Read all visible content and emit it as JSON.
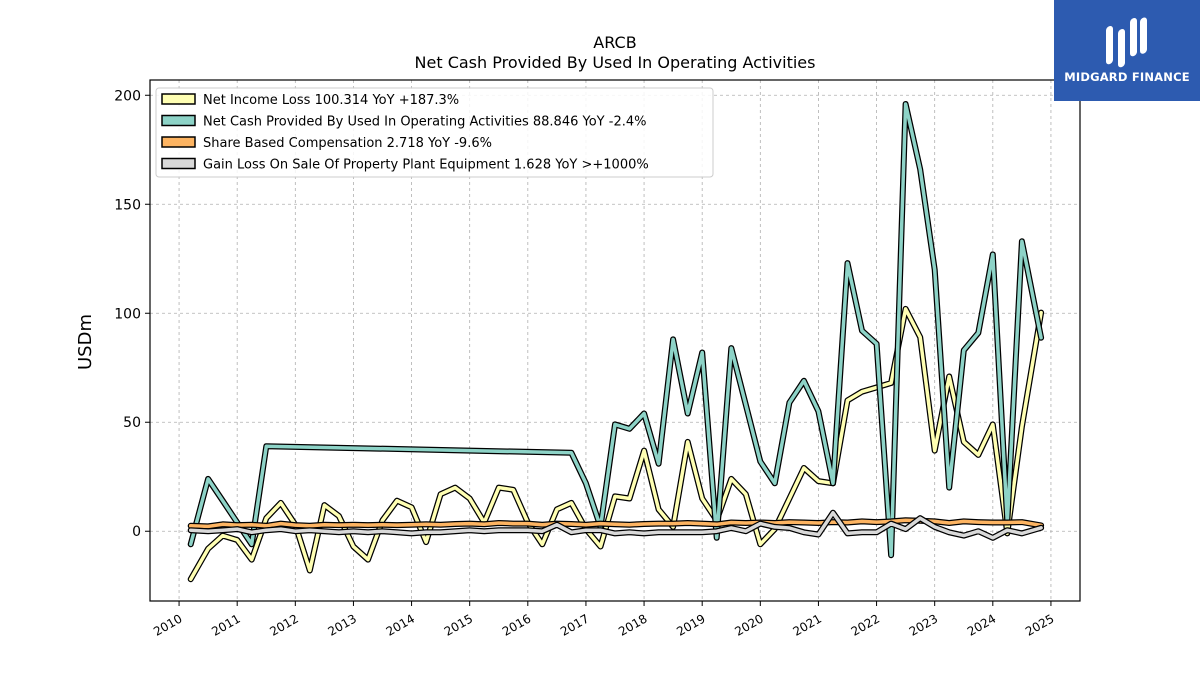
{
  "brand": {
    "name": "MIDGARD FINANCE",
    "color": "#2d5bb0"
  },
  "chart_data": {
    "type": "line",
    "title": "ARCB",
    "subtitle": "Net Cash Provided By Used In Operating Activities",
    "ylabel": "USDm",
    "xlabel": "",
    "xlim": [
      2009.5,
      2025.5
    ],
    "ylim": [
      -32,
      207
    ],
    "yticks": [
      0,
      50,
      100,
      150,
      200
    ],
    "xticks": [
      2010,
      2011,
      2012,
      2013,
      2014,
      2015,
      2016,
      2017,
      2018,
      2019,
      2020,
      2021,
      2022,
      2023,
      2024,
      2025
    ],
    "grid": true,
    "legend_position": "top-left",
    "series": [
      {
        "name": "Net Income Loss",
        "legend": "Net Income Loss  100.314 YoY +187.3%",
        "color": "#ffffb3",
        "points": [
          [
            2010.2,
            -22
          ],
          [
            2010.5,
            -8
          ],
          [
            2010.75,
            -2
          ],
          [
            2011.0,
            -4
          ],
          [
            2011.25,
            -13
          ],
          [
            2011.5,
            6
          ],
          [
            2011.75,
            13
          ],
          [
            2012.0,
            3
          ],
          [
            2012.25,
            -18
          ],
          [
            2012.5,
            12
          ],
          [
            2012.75,
            7
          ],
          [
            2013.0,
            -7
          ],
          [
            2013.25,
            -13
          ],
          [
            2013.5,
            5
          ],
          [
            2013.75,
            14
          ],
          [
            2014.0,
            11
          ],
          [
            2014.25,
            -5
          ],
          [
            2014.5,
            17
          ],
          [
            2014.75,
            20
          ],
          [
            2015.0,
            15
          ],
          [
            2015.25,
            4
          ],
          [
            2015.5,
            20
          ],
          [
            2015.75,
            19
          ],
          [
            2016.0,
            4
          ],
          [
            2016.25,
            -6
          ],
          [
            2016.5,
            10
          ],
          [
            2016.75,
            13
          ],
          [
            2017.0,
            1
          ],
          [
            2017.25,
            -7
          ],
          [
            2017.5,
            16
          ],
          [
            2017.75,
            15
          ],
          [
            2018.0,
            37
          ],
          [
            2018.25,
            10
          ],
          [
            2018.5,
            2
          ],
          [
            2018.75,
            41
          ],
          [
            2019.0,
            15
          ],
          [
            2019.25,
            5
          ],
          [
            2019.5,
            24
          ],
          [
            2019.75,
            17
          ],
          [
            2020.0,
            -6
          ],
          [
            2020.25,
            1
          ],
          [
            2020.5,
            15
          ],
          [
            2020.75,
            29
          ],
          [
            2021.0,
            23
          ],
          [
            2021.25,
            22
          ],
          [
            2021.5,
            60
          ],
          [
            2021.75,
            64
          ],
          [
            2022.0,
            66
          ],
          [
            2022.25,
            68
          ],
          [
            2022.5,
            102
          ],
          [
            2022.75,
            89
          ],
          [
            2023.0,
            37
          ],
          [
            2023.25,
            71
          ],
          [
            2023.5,
            41
          ],
          [
            2023.75,
            35
          ],
          [
            2024.0,
            49
          ],
          [
            2024.25,
            -1
          ],
          [
            2024.5,
            48
          ],
          [
            2024.83,
            100.3
          ]
        ]
      },
      {
        "name": "Net Cash Provided By Used In Operating Activities",
        "legend": "Net Cash Provided By Used In Operating Activities  88.846 YoY -2.4%",
        "color": "#8dd3c7",
        "points": [
          [
            2010.2,
            -6
          ],
          [
            2010.5,
            24
          ],
          [
            2010.75,
            14
          ],
          [
            2011.0,
            4
          ],
          [
            2011.25,
            -6
          ],
          [
            2011.5,
            39
          ],
          [
            2016.75,
            36
          ],
          [
            2017.0,
            22
          ],
          [
            2017.25,
            2
          ],
          [
            2017.5,
            49
          ],
          [
            2017.75,
            47
          ],
          [
            2018.0,
            54
          ],
          [
            2018.25,
            31
          ],
          [
            2018.5,
            88
          ],
          [
            2018.75,
            54
          ],
          [
            2019.0,
            82
          ],
          [
            2019.25,
            -3
          ],
          [
            2019.5,
            84
          ],
          [
            2019.75,
            58
          ],
          [
            2020.0,
            32
          ],
          [
            2020.25,
            22
          ],
          [
            2020.5,
            59
          ],
          [
            2020.75,
            69
          ],
          [
            2021.0,
            55
          ],
          [
            2021.25,
            22
          ],
          [
            2021.5,
            123
          ],
          [
            2021.75,
            92
          ],
          [
            2022.0,
            86
          ],
          [
            2022.25,
            -11
          ],
          [
            2022.5,
            196
          ],
          [
            2022.75,
            166
          ],
          [
            2023.0,
            120
          ],
          [
            2023.25,
            20
          ],
          [
            2023.5,
            83
          ],
          [
            2023.75,
            91
          ],
          [
            2024.0,
            127
          ],
          [
            2024.25,
            4
          ],
          [
            2024.5,
            133
          ],
          [
            2024.83,
            88.8
          ]
        ]
      },
      {
        "name": "Share Based Compensation",
        "legend": "Share Based Compensation  2.718 YoY -9.6%",
        "color": "#fdb462",
        "points": [
          [
            2010.2,
            2.5
          ],
          [
            2010.5,
            2.2
          ],
          [
            2010.75,
            3.2
          ],
          [
            2011.0,
            2.8
          ],
          [
            2011.25,
            3.0
          ],
          [
            2011.5,
            2.5
          ],
          [
            2011.75,
            3.5
          ],
          [
            2012.0,
            2.8
          ],
          [
            2012.25,
            2.5
          ],
          [
            2012.5,
            3.0
          ],
          [
            2012.75,
            2.8
          ],
          [
            2013.0,
            3.0
          ],
          [
            2013.25,
            2.8
          ],
          [
            2013.5,
            3.0
          ],
          [
            2013.75,
            2.8
          ],
          [
            2014.0,
            3.0
          ],
          [
            2014.25,
            3.2
          ],
          [
            2014.5,
            3.0
          ],
          [
            2014.75,
            3.3
          ],
          [
            2015.0,
            3.5
          ],
          [
            2015.25,
            3.2
          ],
          [
            2015.5,
            3.8
          ],
          [
            2015.75,
            3.5
          ],
          [
            2016.0,
            3.5
          ],
          [
            2016.25,
            3.0
          ],
          [
            2016.5,
            3.5
          ],
          [
            2016.75,
            3.3
          ],
          [
            2017.0,
            3.0
          ],
          [
            2017.25,
            3.5
          ],
          [
            2017.5,
            3.2
          ],
          [
            2017.75,
            3.0
          ],
          [
            2018.0,
            3.3
          ],
          [
            2018.25,
            3.5
          ],
          [
            2018.5,
            3.5
          ],
          [
            2018.75,
            3.8
          ],
          [
            2019.0,
            3.5
          ],
          [
            2019.25,
            3.2
          ],
          [
            2019.5,
            4.0
          ],
          [
            2019.75,
            3.8
          ],
          [
            2020.0,
            4.0
          ],
          [
            2020.25,
            3.8
          ],
          [
            2020.5,
            4.2
          ],
          [
            2020.75,
            4.0
          ],
          [
            2021.0,
            3.8
          ],
          [
            2021.25,
            4.2
          ],
          [
            2021.5,
            4.0
          ],
          [
            2021.75,
            4.5
          ],
          [
            2022.0,
            4.2
          ],
          [
            2022.25,
            4.5
          ],
          [
            2022.5,
            5.0
          ],
          [
            2022.75,
            4.8
          ],
          [
            2023.0,
            4.5
          ],
          [
            2023.25,
            3.8
          ],
          [
            2023.5,
            4.5
          ],
          [
            2023.75,
            4.2
          ],
          [
            2024.0,
            4.0
          ],
          [
            2024.25,
            4.0
          ],
          [
            2024.5,
            4.2
          ],
          [
            2024.83,
            2.7
          ]
        ]
      },
      {
        "name": "Gain Loss On Sale Of Property Plant Equipment",
        "legend": "Gain Loss On Sale Of Property Plant Equipment  1.628 YoY >+1000%",
        "color": "#d9d9d9",
        "points": [
          [
            2010.2,
            0.5
          ],
          [
            2010.5,
            0.0
          ],
          [
            2010.75,
            0.5
          ],
          [
            2011.0,
            1.0
          ],
          [
            2011.25,
            -0.5
          ],
          [
            2011.5,
            0.5
          ],
          [
            2011.75,
            1.0
          ],
          [
            2012.0,
            0.0
          ],
          [
            2012.25,
            0.5
          ],
          [
            2012.5,
            0.0
          ],
          [
            2012.75,
            -0.5
          ],
          [
            2013.0,
            0.0
          ],
          [
            2013.25,
            -0.5
          ],
          [
            2013.5,
            0.0
          ],
          [
            2013.75,
            -0.5
          ],
          [
            2014.0,
            -1.0
          ],
          [
            2014.25,
            -0.5
          ],
          [
            2014.5,
            -0.5
          ],
          [
            2014.75,
            0.0
          ],
          [
            2015.0,
            0.5
          ],
          [
            2015.25,
            0.0
          ],
          [
            2015.5,
            0.5
          ],
          [
            2015.75,
            0.5
          ],
          [
            2016.0,
            0.5
          ],
          [
            2016.25,
            0.0
          ],
          [
            2016.5,
            3.0
          ],
          [
            2016.75,
            -0.5
          ],
          [
            2017.0,
            0.5
          ],
          [
            2017.25,
            0.5
          ],
          [
            2017.5,
            -1.0
          ],
          [
            2017.75,
            -0.5
          ],
          [
            2018.0,
            -1.0
          ],
          [
            2018.25,
            -0.5
          ],
          [
            2018.5,
            -0.5
          ],
          [
            2018.75,
            -0.5
          ],
          [
            2019.0,
            -0.5
          ],
          [
            2019.25,
            0.0
          ],
          [
            2019.5,
            1.5
          ],
          [
            2019.75,
            0.0
          ],
          [
            2020.0,
            3.5
          ],
          [
            2020.25,
            2.0
          ],
          [
            2020.5,
            1.5
          ],
          [
            2020.75,
            -0.5
          ],
          [
            2021.0,
            -1.5
          ],
          [
            2021.25,
            8.5
          ],
          [
            2021.5,
            -1.0
          ],
          [
            2021.75,
            -0.5
          ],
          [
            2022.0,
            -0.5
          ],
          [
            2022.25,
            3.5
          ],
          [
            2022.5,
            1.0
          ],
          [
            2022.75,
            6.0
          ],
          [
            2023.0,
            2.0
          ],
          [
            2023.25,
            -0.5
          ],
          [
            2023.5,
            -2.0
          ],
          [
            2023.75,
            0.0
          ],
          [
            2024.0,
            -3.0
          ],
          [
            2024.25,
            0.5
          ],
          [
            2024.5,
            -1.0
          ],
          [
            2024.83,
            1.6
          ]
        ]
      }
    ]
  }
}
